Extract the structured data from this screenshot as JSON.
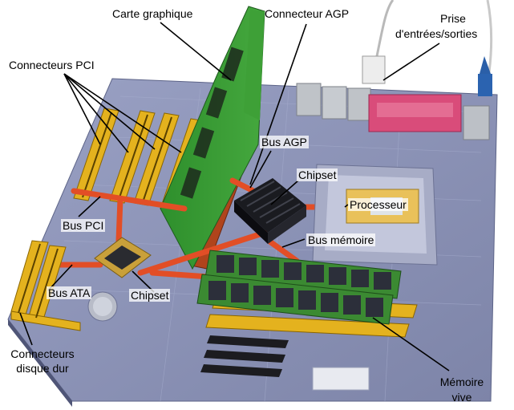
{
  "labels": {
    "graphics_card": "Carte graphique",
    "agp_connector": "Connecteur AGP",
    "io_port_line1": "Prise",
    "io_port_line2": "d'entrées/sorties",
    "pci_connectors": "Connecteurs PCI",
    "agp_bus": "Bus AGP",
    "chipset_north": "Chipset",
    "processor": "Processeur",
    "pci_bus": "Bus PCI",
    "memory_bus": "Bus mémoire",
    "ata_bus": "Bus ATA",
    "chipset_south": "Chipset",
    "hdd_connectors_line1": "Connecteurs",
    "hdd_connectors_line2": "disque dur",
    "ram_line1": "Mémoire",
    "ram_line2": "vive"
  },
  "colors": {
    "board": "#8f97bb",
    "board_dark": "#6f7699",
    "slot_yellow": "#e9b622",
    "bus_red": "#e0502a",
    "pcb_green": "#2f8a2e",
    "ram_chip": "#2c2f3a",
    "heatsink": "#15161a",
    "cpu_gold": "#e9c15a",
    "io_red": "#d93c6a"
  }
}
